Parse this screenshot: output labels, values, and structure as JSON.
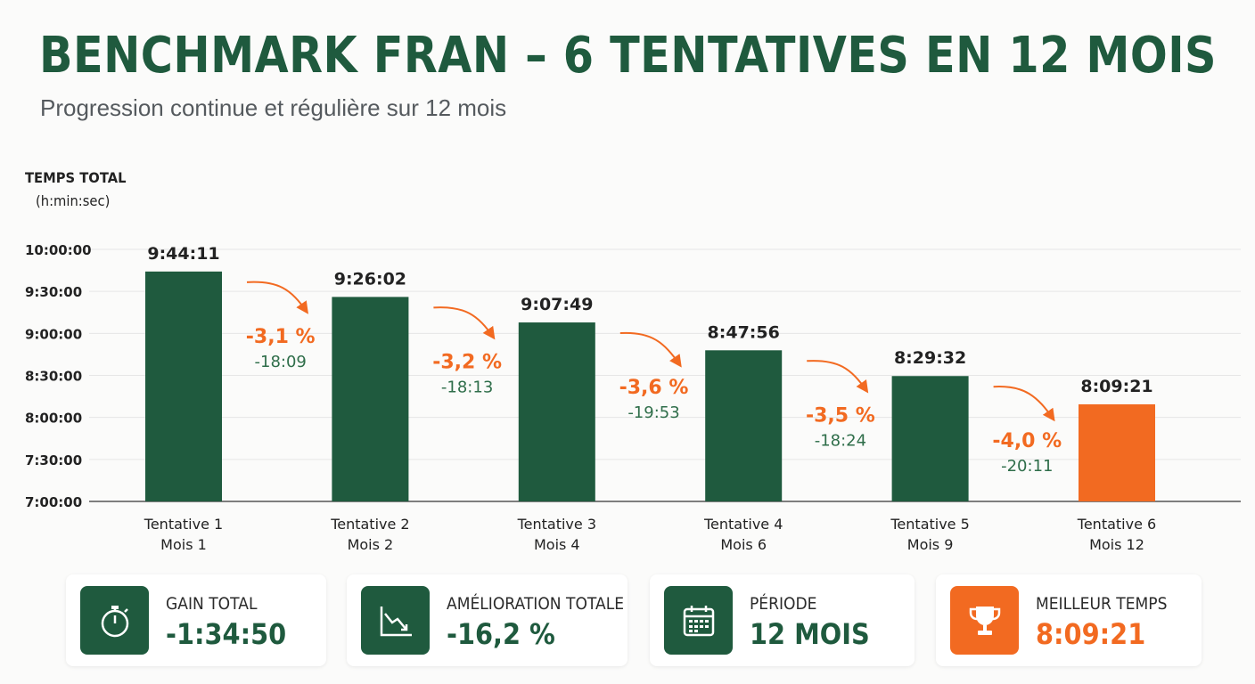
{
  "header": {
    "title": "BENCHMARK FRAN – 6 TENTATIVES EN 12 MOIS",
    "subtitle": "Progression continue et régulière sur 12 mois"
  },
  "colors": {
    "green": "#1f5a3e",
    "orange": "#f26a21",
    "text_green": "#2f6e4a"
  },
  "chart_data": {
    "type": "bar",
    "ylabel": "TEMPS TOTAL",
    "yunit": "(h:min:sec)",
    "ylim": [
      "7:00:00",
      "10:00:00"
    ],
    "yticks": [
      "10:00:00",
      "9:30:00",
      "9:00:00",
      "8:30:00",
      "8:00:00",
      "7:30:00",
      "7:00:00"
    ],
    "grid": true,
    "categories": [
      {
        "line1": "Tentative 1",
        "line2": "Mois 1"
      },
      {
        "line1": "Tentative 2",
        "line2": "Mois 2"
      },
      {
        "line1": "Tentative 3",
        "line2": "Mois 4"
      },
      {
        "line1": "Tentative 4",
        "line2": "Mois 6"
      },
      {
        "line1": "Tentative 5",
        "line2": "Mois 9"
      },
      {
        "line1": "Tentative 6",
        "line2": "Mois 12"
      }
    ],
    "values": [
      "9:44:11",
      "9:26:02",
      "9:07:49",
      "8:47:56",
      "8:29:32",
      "8:09:21"
    ],
    "highlight_index": 5,
    "changes": [
      {
        "percent": "-3,1 %",
        "delta": "-18:09"
      },
      {
        "percent": "-3,2 %",
        "delta": "-18:13"
      },
      {
        "percent": "-3,6 %",
        "delta": "-19:53"
      },
      {
        "percent": "-3,5 %",
        "delta": "-18:24"
      },
      {
        "percent": "-4,0 %",
        "delta": "-20:11"
      }
    ]
  },
  "cards": [
    {
      "icon": "stopwatch-icon",
      "label": "GAIN TOTAL",
      "value": "-1:34:50"
    },
    {
      "icon": "trend-down-icon",
      "label": "AMÉLIORATION TOTALE",
      "value": "-16,2 %"
    },
    {
      "icon": "calendar-icon",
      "label": "PÉRIODE",
      "value": "12 MOIS"
    },
    {
      "icon": "trophy-icon",
      "label": "MEILLEUR TEMPS",
      "value": "8:09:21"
    }
  ]
}
